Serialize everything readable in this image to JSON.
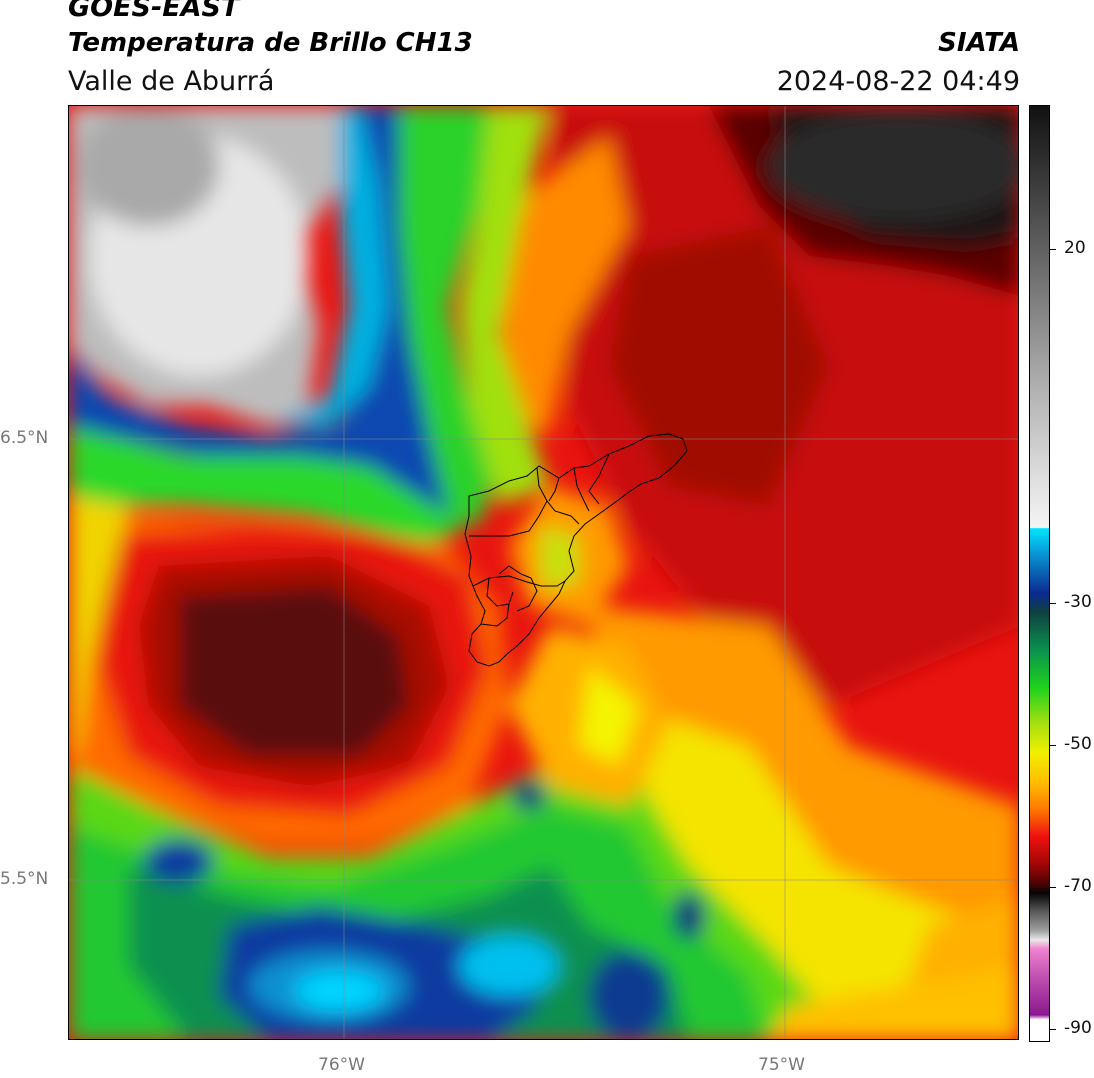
{
  "header": {
    "satellite": "GOES-EAST",
    "product": "Temperatura de Brillo CH13",
    "region": "Valle de Aburrá",
    "organization": "SIATA",
    "datetime": "2024-08-22 04:49"
  },
  "map": {
    "latitude_labels": [
      "6.5°N",
      "5.5°N"
    ],
    "longitude_labels": [
      "76°W",
      "75°W"
    ]
  },
  "colorbar": {
    "tick_labels": [
      "20",
      "-30",
      "-50",
      "-70",
      "-90"
    ],
    "colors": {
      "top": "#111111",
      "grey": "#9a9a9a",
      "white": "#f2f2f2",
      "cyan": "#00d8ff",
      "blue": "#0a2a90",
      "green": "#1cd11c",
      "yellow": "#f0f000",
      "orange": "#ff8a00",
      "red": "#ee1010",
      "darkred": "#5a0505",
      "black": "#050505",
      "pink": "#e070c0",
      "purple": "#8a1890"
    }
  }
}
